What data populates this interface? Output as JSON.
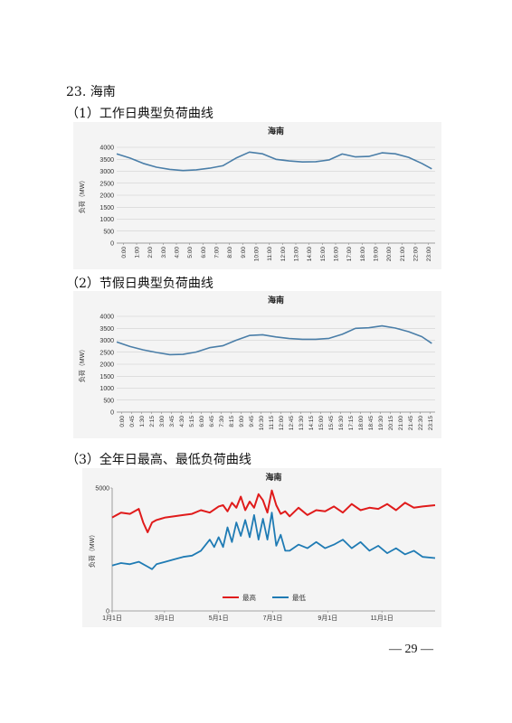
{
  "section_title": "23. 海南",
  "page_number": "— 29 —",
  "sub_headings": [
    "（1）工作日典型负荷曲线",
    "（2）节假日典型负荷曲线",
    "（3）全年日最高、最低负荷曲线"
  ],
  "chart_data": [
    {
      "type": "line",
      "title": "海南",
      "ylabel": "负荷（MW）",
      "xlabel": "",
      "ylim": [
        0,
        4000
      ],
      "y_ticks": [
        "0",
        "500",
        "1000",
        "1500",
        "2000",
        "2500",
        "3000",
        "3500",
        "4000"
      ],
      "x_tick_labels": [
        "0:00",
        "1:00",
        "2:00",
        "3:00",
        "4:00",
        "5:00",
        "6:00",
        "7:00",
        "8:00",
        "9:00",
        "10:00",
        "11:00",
        "12:00",
        "13:00",
        "14:00",
        "15:00",
        "16:00",
        "17:00",
        "18:00",
        "19:00",
        "20:00",
        "21:00",
        "22:00",
        "23:00"
      ],
      "grid": true,
      "color": "#4a7ea8",
      "series": [
        {
          "x": [
            0,
            1,
            2,
            3,
            4,
            5,
            6,
            7,
            8,
            9,
            10,
            11,
            12,
            13,
            14,
            15,
            16,
            17,
            18,
            19,
            20,
            21,
            22,
            23,
            23.75
          ],
          "values": [
            3730,
            3550,
            3330,
            3170,
            3080,
            3030,
            3060,
            3130,
            3230,
            3550,
            3800,
            3730,
            3500,
            3430,
            3390,
            3400,
            3470,
            3720,
            3600,
            3620,
            3770,
            3730,
            3580,
            3330,
            3100
          ]
        }
      ]
    },
    {
      "type": "line",
      "title": "海南",
      "ylabel": "负荷（MW）",
      "xlabel": "",
      "ylim": [
        0,
        4000
      ],
      "y_ticks": [
        "0",
        "500",
        "1000",
        "1500",
        "2000",
        "2500",
        "3000",
        "3500",
        "4000"
      ],
      "x_tick_labels": [
        "0:00",
        "0:45",
        "1:30",
        "2:15",
        "3:00",
        "3:45",
        "4:30",
        "5:15",
        "6:00",
        "6:45",
        "7:30",
        "8:15",
        "9:00",
        "9:45",
        "10:30",
        "11:15",
        "12:00",
        "12:45",
        "13:30",
        "14:15",
        "15:00",
        "15:45",
        "16:30",
        "17:15",
        "18:00",
        "18:45",
        "19:30",
        "20:15",
        "21:00",
        "21:45",
        "22:30",
        "23:15"
      ],
      "grid": true,
      "color": "#4a7ea8",
      "series": [
        {
          "x": [
            0,
            1,
            2,
            3,
            4,
            5,
            6,
            7,
            8,
            9,
            10,
            11,
            12,
            13,
            14,
            15,
            16,
            17,
            18,
            19,
            20,
            21,
            22,
            23,
            23.75
          ],
          "values": [
            2930,
            2740,
            2600,
            2490,
            2400,
            2410,
            2510,
            2690,
            2770,
            3000,
            3200,
            3230,
            3140,
            3070,
            3040,
            3040,
            3080,
            3250,
            3500,
            3520,
            3600,
            3510,
            3360,
            3150,
            2870
          ]
        }
      ]
    },
    {
      "type": "line",
      "title": "海南",
      "ylabel": "负荷（MW）",
      "xlabel": "",
      "ylim": [
        0,
        5000
      ],
      "y_ticks": [
        "0",
        "5000"
      ],
      "x_tick_labels": [
        "1月1日",
        "3月1日",
        "5月1日",
        "7月1日",
        "9月1日",
        "11月1日"
      ],
      "x_tick_days": [
        0,
        59,
        120,
        181,
        243,
        304
      ],
      "grid": false,
      "legend_position": "bottom",
      "series": [
        {
          "name": "最高",
          "color": "#e01b1b",
          "x": [
            0,
            10,
            20,
            30,
            35,
            40,
            45,
            50,
            55,
            60,
            70,
            80,
            90,
            100,
            110,
            120,
            125,
            130,
            135,
            140,
            145,
            150,
            155,
            160,
            165,
            170,
            175,
            180,
            185,
            190,
            195,
            200,
            210,
            220,
            230,
            240,
            250,
            260,
            270,
            280,
            290,
            300,
            310,
            320,
            330,
            340,
            350,
            364
          ],
          "values": [
            3800,
            4000,
            3950,
            4150,
            3600,
            3200,
            3600,
            3700,
            3750,
            3800,
            3850,
            3900,
            3950,
            4100,
            4000,
            4250,
            4300,
            4050,
            4400,
            4200,
            4650,
            4100,
            4450,
            4200,
            4750,
            4500,
            4000,
            4900,
            4300,
            3950,
            4050,
            3850,
            4200,
            3900,
            4100,
            4050,
            4250,
            4000,
            4350,
            4100,
            4200,
            4150,
            4350,
            4100,
            4400,
            4200,
            4250,
            4300
          ]
        },
        {
          "name": "最低",
          "color": "#1f7bb4",
          "x": [
            0,
            10,
            20,
            30,
            40,
            45,
            50,
            60,
            70,
            80,
            90,
            100,
            110,
            115,
            120,
            125,
            130,
            135,
            140,
            145,
            150,
            155,
            160,
            165,
            170,
            175,
            180,
            185,
            190,
            195,
            200,
            210,
            220,
            230,
            240,
            250,
            260,
            270,
            280,
            290,
            300,
            310,
            320,
            330,
            340,
            350,
            364
          ],
          "values": [
            1850,
            1950,
            1900,
            2000,
            1800,
            1700,
            1900,
            2000,
            2100,
            2200,
            2250,
            2450,
            2900,
            2600,
            3000,
            2600,
            3400,
            2800,
            3600,
            3050,
            3700,
            3000,
            3900,
            2900,
            3750,
            2900,
            4000,
            2650,
            3100,
            2450,
            2450,
            2700,
            2550,
            2800,
            2550,
            2700,
            2900,
            2550,
            2800,
            2450,
            2650,
            2350,
            2550,
            2300,
            2450,
            2200,
            2150
          ]
        }
      ]
    }
  ]
}
